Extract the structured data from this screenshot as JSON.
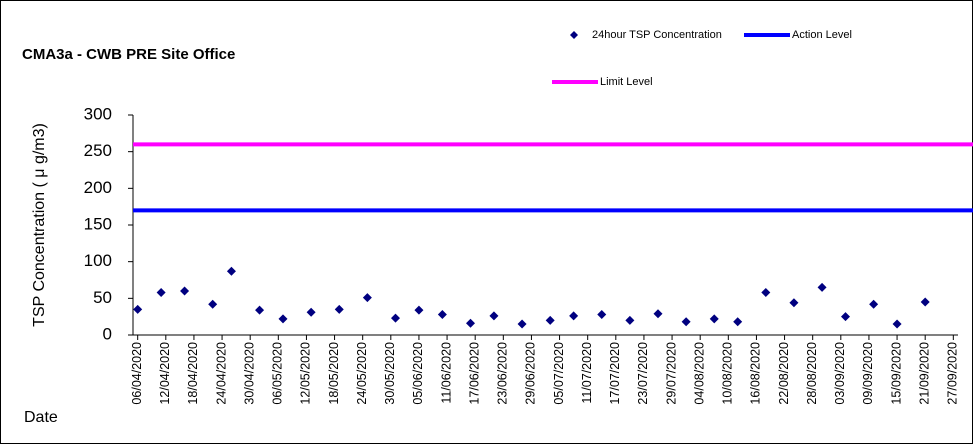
{
  "chart_data": {
    "type": "scatter",
    "title": "CMA3a - CWB PRE Site Office",
    "y_label": "TSP Concentration ( μ g/m3)",
    "x_label": "Date",
    "series": [
      {
        "name": "24hour TSP Concentration",
        "color": "#000080",
        "x": [
          "06/04/2020",
          "11/04/2020",
          "16/04/2020",
          "22/04/2020",
          "26/04/2020",
          "02/05/2020",
          "07/05/2020",
          "13/05/2020",
          "19/05/2020",
          "25/05/2020",
          "31/05/2020",
          "05/06/2020",
          "10/06/2020",
          "16/06/2020",
          "21/06/2020",
          "27/06/2020",
          "03/07/2020",
          "08/07/2020",
          "14/07/2020",
          "20/07/2020",
          "26/07/2020",
          "01/08/2020",
          "07/08/2020",
          "12/08/2020",
          "18/08/2020",
          "24/08/2020",
          "30/08/2020",
          "04/09/2020",
          "10/09/2020",
          "15/09/2020",
          "21/09/2020"
        ],
        "values": [
          35,
          58,
          60,
          42,
          87,
          34,
          22,
          31,
          35,
          51,
          23,
          34,
          28,
          16,
          26,
          15,
          20,
          26,
          28,
          20,
          29,
          18,
          22,
          18,
          58,
          44,
          65,
          25,
          42,
          15,
          45
        ]
      }
    ],
    "reference_lines": [
      {
        "name": "Action Level",
        "color": "#0000ff",
        "value": 170
      },
      {
        "name": "Limit Level",
        "color": "#ff00ff",
        "value": 260
      }
    ],
    "xlim": [
      "05/04/2020",
      "28/09/2020"
    ],
    "xticks": [
      "06/04/2020",
      "12/04/2020",
      "18/04/2020",
      "24/04/2020",
      "30/04/2020",
      "06/05/2020",
      "12/05/2020",
      "18/05/2020",
      "24/05/2020",
      "30/05/2020",
      "05/06/2020",
      "11/06/2020",
      "17/06/2020",
      "23/06/2020",
      "29/06/2020",
      "05/07/2020",
      "11/07/2020",
      "17/07/2020",
      "23/07/2020",
      "29/07/2020",
      "04/08/2020",
      "10/08/2020",
      "16/08/2020",
      "22/08/2020",
      "28/08/2020",
      "03/09/2020",
      "09/09/2020",
      "15/09/2020",
      "21/09/2020",
      "27/09/2020"
    ],
    "ylim": [
      0,
      300
    ],
    "yticks": [
      0,
      50,
      100,
      150,
      200,
      250,
      300
    ]
  }
}
